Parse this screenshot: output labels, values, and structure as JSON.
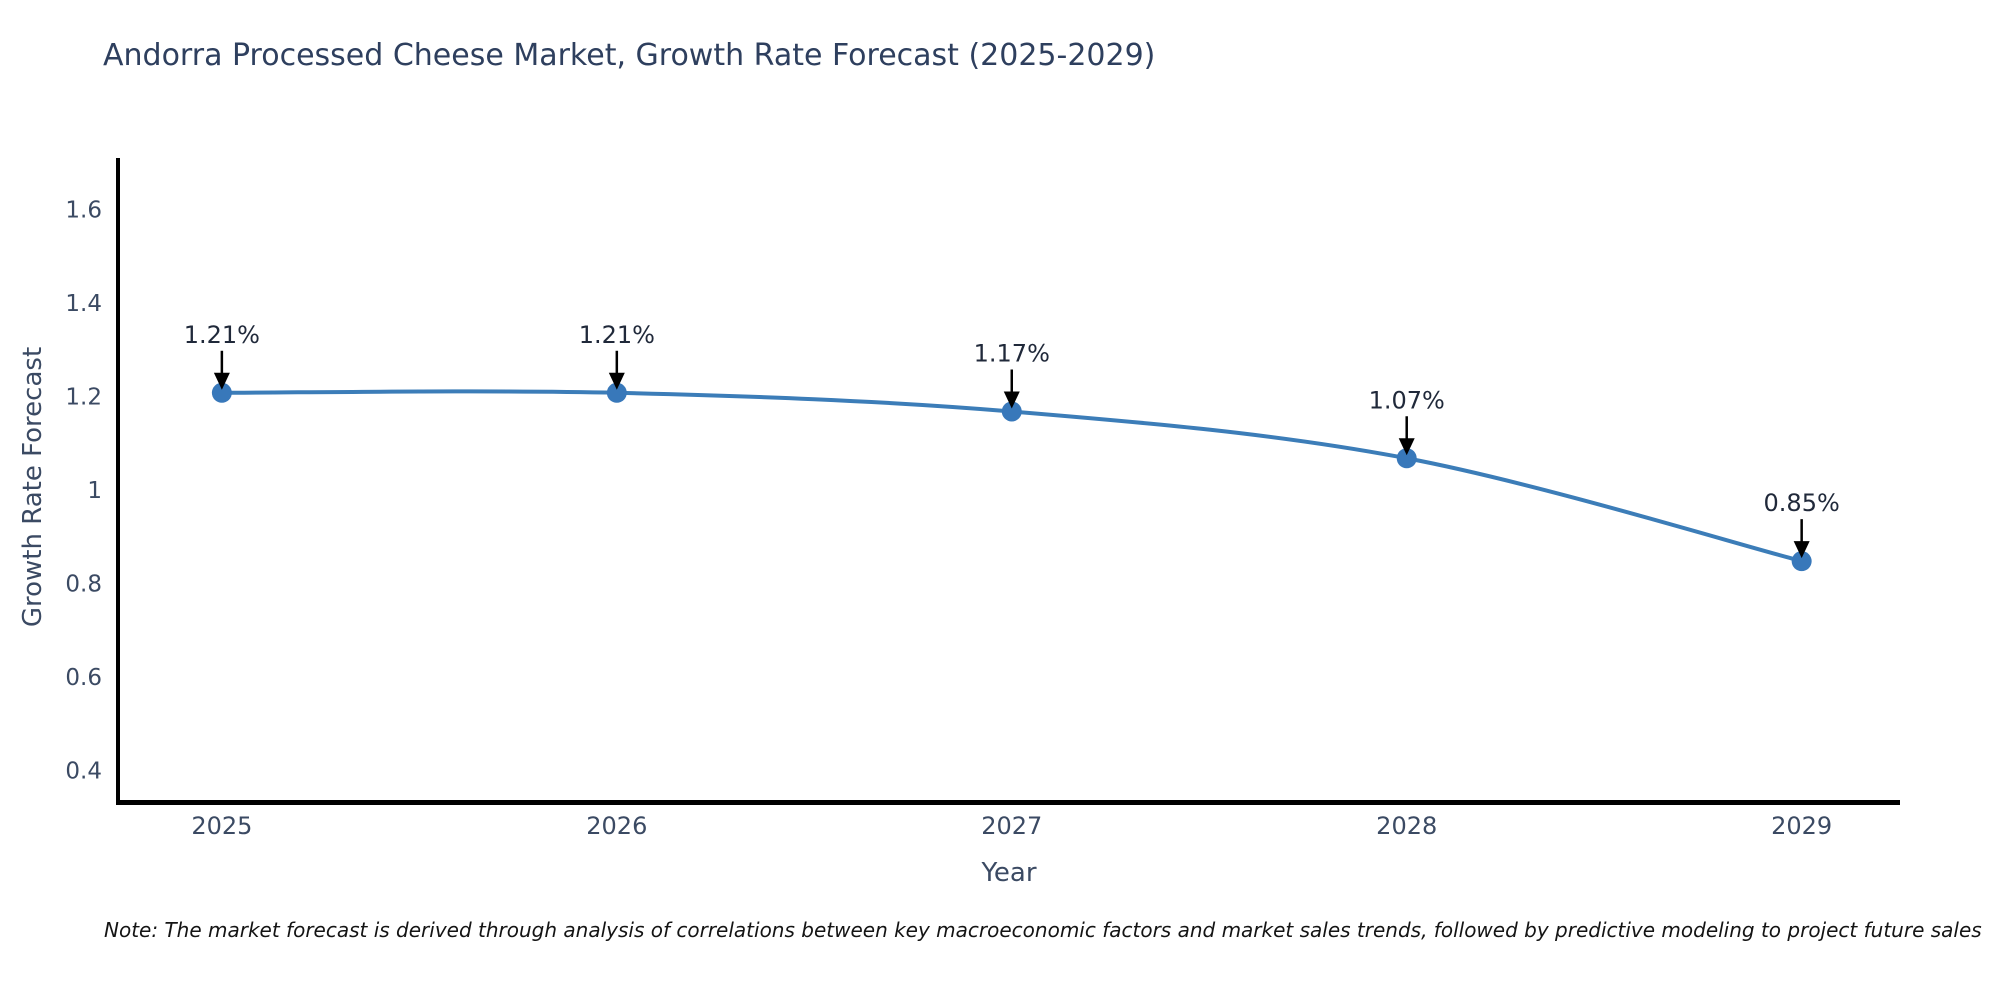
{
  "title": "Andorra Processed Cheese Market, Growth Rate Forecast (2025-2029)",
  "note": "Note: The market forecast is derived through analysis of correlations between key macroeconomic factors and market sales trends, followed by predictive modeling to project future sales",
  "chart_data": {
    "type": "line",
    "line_shape": "spline",
    "title": "Andorra Processed Cheese Market, Growth Rate Forecast (2025-2029)",
    "xlabel": "Year",
    "ylabel": "Growth Rate Forecast",
    "x": [
      2025,
      2026,
      2027,
      2028,
      2029
    ],
    "values": [
      1.21,
      1.21,
      1.17,
      1.07,
      0.85
    ],
    "point_labels": [
      "1.21%",
      "1.21%",
      "1.17%",
      "1.07%",
      "0.85%"
    ],
    "yticks": [
      0.4,
      0.6,
      0.8,
      1,
      1.2,
      1.4,
      1.6
    ],
    "ylim": [
      0.335,
      1.712
    ],
    "xlim": [
      2024.737,
      2029.249
    ],
    "grid": false,
    "legend": "none",
    "line_color": "#3c7db8",
    "marker_color": "#3878ba",
    "annotation_arrow_color": "#000000",
    "spine_color": "#000000",
    "background_color": "#ffffff"
  }
}
